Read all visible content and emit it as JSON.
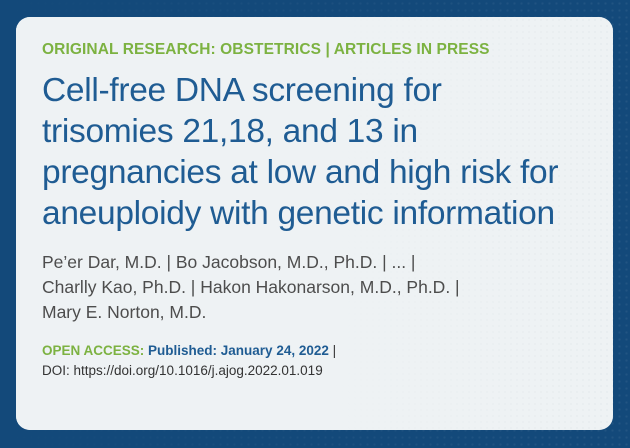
{
  "card": {
    "kicker": "ORIGINAL RESEARCH: OBSTETRICS | ARTICLES IN PRESS",
    "title_lines": [
      "Cell-free DNA screening for",
      "trisomies 21,18, and 13 in",
      "pregnancies at low and high risk for",
      "aneuploidy with genetic information"
    ],
    "author_lines": [
      "Pe’er Dar, M.D. | Bo Jacobson, M.D., Ph.D. | ... |",
      "Charlly Kao, Ph.D. | Hakon Hakonarson, M.D., Ph.D. |",
      "Mary E. Norton, M.D."
    ],
    "open_access": "OPEN ACCESS:",
    "published": "Published: January 24, 2022",
    "separator": "|",
    "doi": "DOI: https://doi.org/10.1016/j.ajog.2022.01.019"
  },
  "colors": {
    "background": "#13497a",
    "card": "#eef2f4",
    "accent_green": "#7cb241",
    "title_blue": "#1f5c93"
  }
}
